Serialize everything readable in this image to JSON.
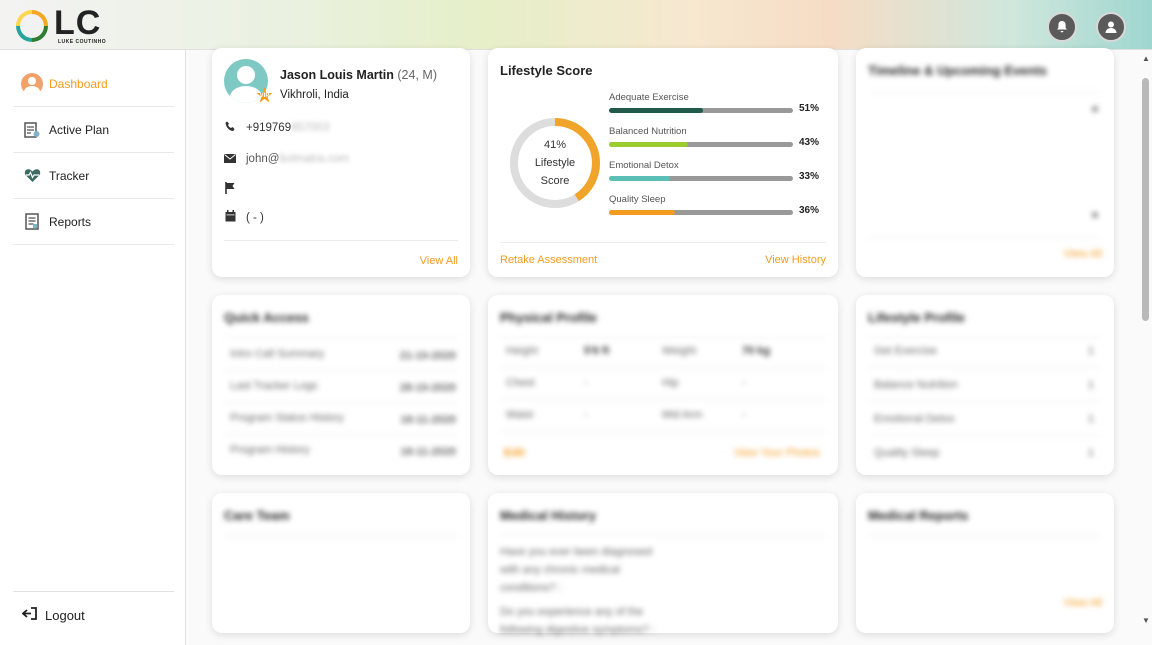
{
  "header": {
    "logo_text": "LC",
    "logo_subtext": "LUKE COUTINHO",
    "notification_icon": "bell-icon",
    "profile_icon": "user-icon"
  },
  "sidebar": {
    "items": [
      {
        "label": "Dashboard",
        "icon": "dashboard-user-icon",
        "active": true
      },
      {
        "label": "Active Plan",
        "icon": "plan-clipboard-icon"
      },
      {
        "label": "Tracker",
        "icon": "heart-pulse-icon"
      },
      {
        "label": "Reports",
        "icon": "report-document-icon"
      }
    ],
    "logout_label": "Logout"
  },
  "profile": {
    "name": "Jason Louis Martin",
    "meta": "(24, M)",
    "badge": "VIP",
    "location": "Vikhroli, India",
    "phone_visible": "+919769",
    "phone_masked": "857003",
    "email_visible": "john@",
    "email_masked": "bolmatra.com",
    "date": "( - )",
    "view_all": "View All"
  },
  "lifestyle": {
    "title": "Lifestyle Score",
    "score_percent": "41%",
    "score_label_1": "Lifestyle",
    "score_label_2": "Score",
    "score_value": 41,
    "bars": [
      {
        "label": "Adequate Exercise",
        "pct": "51%",
        "value": 51,
        "color": "#1f5a4a"
      },
      {
        "label": "Balanced Nutrition",
        "pct": "43%",
        "value": 43,
        "color": "#9ccb2e"
      },
      {
        "label": "Emotional Detox",
        "pct": "33%",
        "value": 33,
        "color": "#5bbfb5"
      },
      {
        "label": "Quality Sleep",
        "pct": "36%",
        "value": 36,
        "color": "#f39c1f"
      }
    ],
    "retake": "Retake Assessment",
    "history": "View History"
  },
  "timeline": {
    "title": "Timeline & Upcoming Events",
    "view_all": "View All"
  },
  "quick_access": {
    "title": "Quick Access",
    "rows": [
      {
        "label": "Intro Call Summary",
        "value": "21-10-2020"
      },
      {
        "label": "Last Tracker Logs",
        "value": "28-10-2020"
      },
      {
        "label": "Program Status History",
        "value": "18-11-2020"
      },
      {
        "label": "Program History",
        "value": "18-11-2020"
      }
    ]
  },
  "physical": {
    "title": "Physical Profile",
    "rows": [
      {
        "k1": "Height",
        "v1": "5'6 ft",
        "k2": "Weight",
        "v2": "70 kg"
      },
      {
        "k1": "Chest",
        "v1": "-",
        "k2": "Hip",
        "v2": "-"
      },
      {
        "k1": "Waist",
        "v1": "-",
        "k2": "Mid Arm",
        "v2": "-"
      }
    ],
    "edit": "Edit",
    "photos": "View Your Photos"
  },
  "lifestyle_profile": {
    "title": "Lifestyle Profile",
    "rows": [
      {
        "label": "Get Exercise",
        "value": "1"
      },
      {
        "label": "Balance Nutrition",
        "value": "1"
      },
      {
        "label": "Emotional Detox",
        "value": "1"
      },
      {
        "label": "Quality Sleep",
        "value": "1"
      }
    ]
  },
  "care_team": {
    "title": "Care Team"
  },
  "medical_history": {
    "title": "Medical History",
    "q1": "Have you ever been diagnosed with any chronic medical conditions? :",
    "q2": "Do you experience any of the following digestive symptoms? :"
  },
  "medical_reports": {
    "title": "Medical Reports",
    "view_all": "View All"
  }
}
